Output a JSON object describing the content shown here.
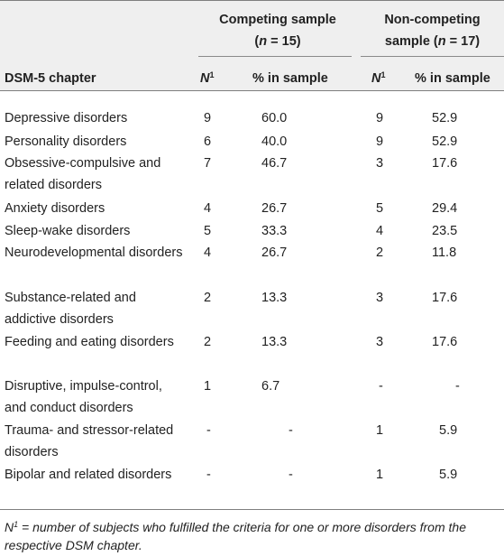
{
  "header": {
    "group1_line1": "Competing sample",
    "group1_line2_pre": "(",
    "group1_n": "n",
    "group1_line2_post": " = 15)",
    "group2_line1": "Non-competing",
    "group2_line2_pre": "sample (",
    "group2_n": "n",
    "group2_line2_post": " = 17)",
    "chapter_label": "DSM-5 chapter",
    "n_label": "N",
    "n_sup": "1",
    "pct_label": "% in sample"
  },
  "rows": [
    {
      "chapter": "Depressive disorders",
      "n1": "9",
      "pct1": "60.0",
      "n2": "9",
      "pct2": "52.9"
    },
    {
      "chapter": "Personality disorders",
      "n1": "6",
      "pct1": "40.0",
      "n2": "9",
      "pct2": "52.9"
    },
    {
      "chapter": "Obsessive-compulsive and related disorders",
      "n1": "7",
      "pct1": "46.7",
      "n2": "3",
      "pct2": "17.6"
    },
    {
      "chapter": "Anxiety disorders",
      "n1": "4",
      "pct1": "26.7",
      "n2": "5",
      "pct2": "29.4"
    },
    {
      "chapter": "Sleep-wake disorders",
      "n1": "5",
      "pct1": "33.3",
      "n2": "4",
      "pct2": "23.5"
    },
    {
      "chapter": "Neurodevelopmental disorders",
      "n1": "4",
      "pct1": "26.7",
      "n2": "2",
      "pct2": "11.8"
    },
    {
      "chapter": "Substance-related and addictive disorders",
      "n1": "2",
      "pct1": "13.3",
      "n2": "3",
      "pct2": "17.6"
    },
    {
      "chapter": "Feeding and eating disorders",
      "n1": "2",
      "pct1": "13.3",
      "n2": "3",
      "pct2": "17.6"
    },
    {
      "chapter": "Disruptive, impulse-control, and conduct disorders",
      "n1": "1",
      "pct1": "6.7",
      "n2": "-",
      "pct2": "-"
    },
    {
      "chapter": "Trauma- and stressor-related disorders",
      "n1": "-",
      "pct1": "-",
      "n2": "1",
      "pct2": "5.9"
    },
    {
      "chapter": "Bipolar and related disorders",
      "n1": "-",
      "pct1": "-",
      "n2": "1",
      "pct2": "5.9"
    }
  ],
  "footnote": {
    "sym": "N",
    "sup": "1",
    "text": " = number of subjects who fulfilled the criteria for one or more disorders from the respective DSM chapter."
  }
}
